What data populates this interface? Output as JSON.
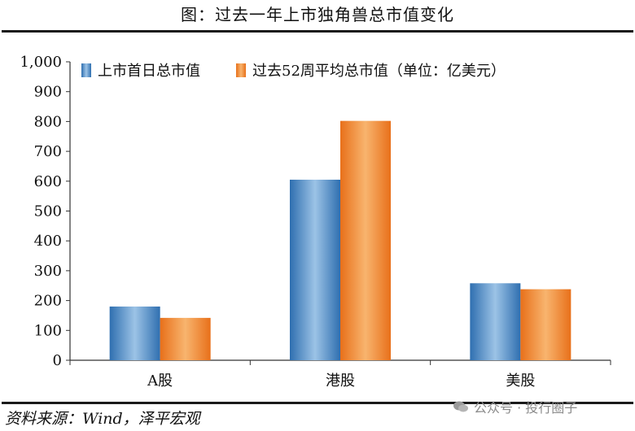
{
  "title": "图：过去一年上市独角兽总市值变化",
  "source": "资料来源：Wind，泽平宏观",
  "watermark": "公众号 · 投行圈子",
  "chart_data": {
    "type": "bar",
    "categories": [
      "A股",
      "港股",
      "美股"
    ],
    "series": [
      {
        "name": "上市首日总市值",
        "values": [
          180,
          605,
          258
        ],
        "color": "#4a8fc7"
      },
      {
        "name": "过去52周平均总市值（单位：亿美元）",
        "values": [
          142,
          802,
          238
        ],
        "color": "#f0923a"
      }
    ],
    "ylim": [
      0,
      1000
    ],
    "yticks": [
      0,
      100,
      200,
      300,
      400,
      500,
      600,
      700,
      800,
      900,
      1000
    ],
    "ytick_labels": [
      "0",
      "100",
      "200",
      "300",
      "400",
      "500",
      "600",
      "700",
      "800",
      "900",
      "1,000"
    ],
    "legend_position": "top",
    "grid": false
  }
}
